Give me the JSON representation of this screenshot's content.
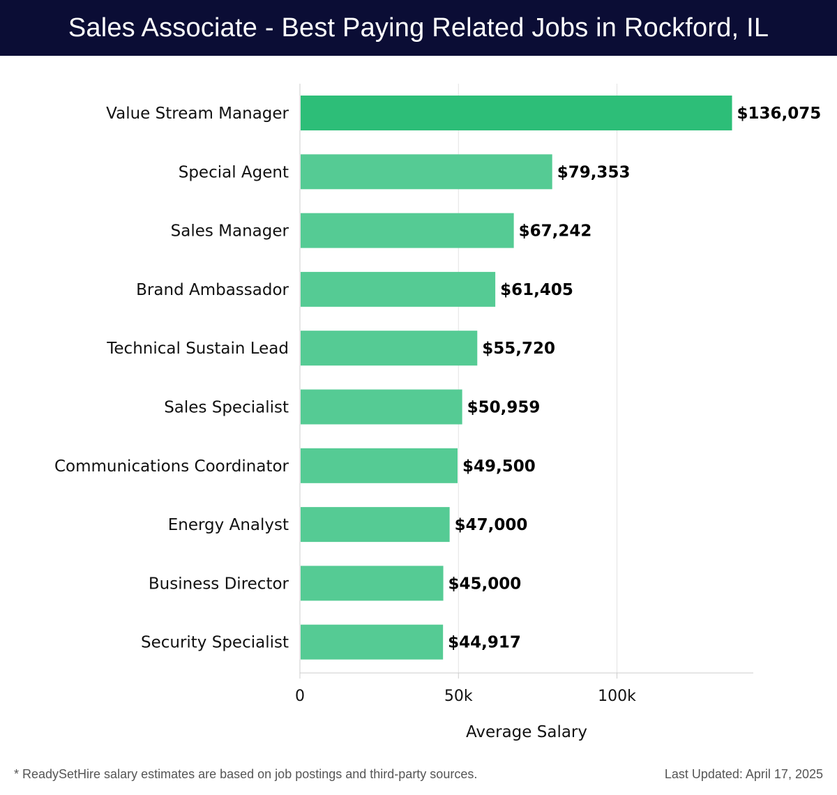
{
  "header": {
    "title": "Sales Associate - Best Paying Related Jobs in Rockford, IL"
  },
  "chart_data": {
    "type": "bar",
    "orientation": "horizontal",
    "title": "Sales Associate - Best Paying Related Jobs in Rockford, IL",
    "xlabel": "Average Salary",
    "ylabel": "",
    "xlim": [
      0,
      143000
    ],
    "xticks": [
      {
        "value": 0,
        "label": "0"
      },
      {
        "value": 50000,
        "label": "50k"
      },
      {
        "value": 100000,
        "label": "100k"
      }
    ],
    "grid": true,
    "categories": [
      "Value Stream Manager",
      "Special Agent",
      "Sales Manager",
      "Brand Ambassador",
      "Technical Sustain Lead",
      "Sales Specialist",
      "Communications Coordinator",
      "Energy Analyst",
      "Business Director",
      "Security Specialist"
    ],
    "values": [
      136075,
      79353,
      67242,
      61405,
      55720,
      50959,
      49500,
      47000,
      45000,
      44917
    ],
    "data_labels": [
      "$136,075",
      "$79,353",
      "$67,242",
      "$61,405",
      "$55,720",
      "$50,959",
      "$49,500",
      "$47,000",
      "$45,000",
      "$44,917"
    ],
    "colors": {
      "top_bar": "#2dbe78",
      "bar": "#55cb94",
      "grid": "#e3e3e3",
      "axis": "#cccccc",
      "label": "#111111"
    }
  },
  "footer": {
    "note": "* ReadySetHire salary estimates are based on job postings and third-party sources.",
    "updated": "Last Updated: April 17, 2025"
  }
}
